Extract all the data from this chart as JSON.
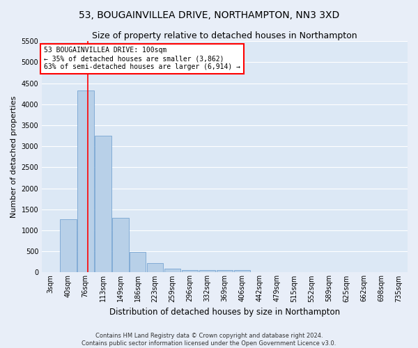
{
  "title": "53, BOUGAINVILLEA DRIVE, NORTHAMPTON, NN3 3XD",
  "subtitle": "Size of property relative to detached houses in Northampton",
  "xlabel": "Distribution of detached houses by size in Northampton",
  "ylabel": "Number of detached properties",
  "footer1": "Contains HM Land Registry data © Crown copyright and database right 2024.",
  "footer2": "Contains public sector information licensed under the Open Government Licence v3.0.",
  "categories": [
    "3sqm",
    "40sqm",
    "76sqm",
    "113sqm",
    "149sqm",
    "186sqm",
    "223sqm",
    "259sqm",
    "296sqm",
    "332sqm",
    "369sqm",
    "406sqm",
    "442sqm",
    "479sqm",
    "515sqm",
    "552sqm",
    "589sqm",
    "625sqm",
    "662sqm",
    "698sqm",
    "735sqm"
  ],
  "values": [
    0,
    1270,
    4330,
    3250,
    1290,
    490,
    220,
    90,
    60,
    50,
    50,
    50,
    0,
    0,
    0,
    0,
    0,
    0,
    0,
    0,
    0
  ],
  "bar_color": "#b8d0e8",
  "bar_edge_color": "#6699cc",
  "ylim": [
    0,
    5500
  ],
  "yticks": [
    0,
    500,
    1000,
    1500,
    2000,
    2500,
    3000,
    3500,
    4000,
    4500,
    5000,
    5500
  ],
  "property_label": "53 BOUGAINVILLEA DRIVE: 100sqm",
  "annotation_line1": "← 35% of detached houses are smaller (3,862)",
  "annotation_line2": "63% of semi-detached houses are larger (6,914) →",
  "bg_color": "#dce8f5",
  "fig_bg_color": "#e8eef8",
  "grid_color": "#ffffff",
  "title_fontsize": 10,
  "subtitle_fontsize": 9,
  "tick_fontsize": 7,
  "ylabel_fontsize": 8,
  "xlabel_fontsize": 8.5,
  "footer_fontsize": 6,
  "annot_fontsize": 7
}
